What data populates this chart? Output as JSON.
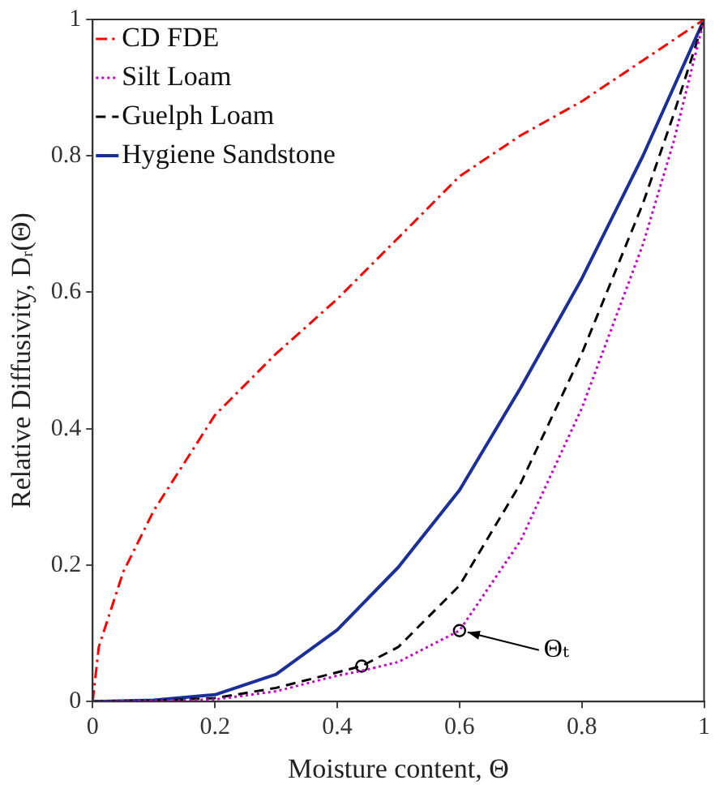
{
  "chart_data": {
    "type": "line",
    "xlabel": "Moisture content, Θ",
    "ylabel": "Relative Diffusivity, Dᵣ(Θ)",
    "xlim": [
      0,
      1
    ],
    "ylim": [
      0,
      1
    ],
    "xticks": [
      0,
      0.2,
      0.4,
      0.6,
      0.8,
      1
    ],
    "yticks": [
      0,
      0.2,
      0.4,
      0.6,
      0.8,
      1
    ],
    "grid": false,
    "legend": "top left",
    "series": [
      {
        "name": "CD FDE",
        "color": "#ff0000",
        "line_style": "dashdot",
        "x": [
          0,
          0.01,
          0.05,
          0.1,
          0.2,
          0.3,
          0.4,
          0.5,
          0.6,
          0.7,
          0.8,
          0.9,
          1
        ],
        "values": [
          0,
          0.08,
          0.19,
          0.28,
          0.42,
          0.51,
          0.59,
          0.68,
          0.77,
          0.83,
          0.88,
          0.94,
          1
        ]
      },
      {
        "name": "Silt Loam",
        "color": "#cc00cc",
        "line_style": "dotted",
        "x": [
          0,
          0.1,
          0.2,
          0.3,
          0.4,
          0.44,
          0.5,
          0.6,
          0.7,
          0.8,
          0.9,
          0.95,
          1
        ],
        "values": [
          0,
          0.001,
          0.003,
          0.015,
          0.038,
          0.045,
          0.058,
          0.104,
          0.236,
          0.43,
          0.67,
          0.82,
          1
        ]
      },
      {
        "name": "Guelph Loam",
        "color": "#000000",
        "line_style": "dashed",
        "x": [
          0,
          0.1,
          0.2,
          0.3,
          0.44,
          0.5,
          0.6,
          0.7,
          0.8,
          0.9,
          0.95,
          1
        ],
        "values": [
          0,
          0.001,
          0.005,
          0.02,
          0.052,
          0.08,
          0.17,
          0.32,
          0.51,
          0.73,
          0.86,
          1
        ]
      },
      {
        "name": "Hygiene Sandstone",
        "color": "#1a2f9a",
        "line_style": "solid",
        "x": [
          0,
          0.1,
          0.2,
          0.3,
          0.4,
          0.5,
          0.6,
          0.7,
          0.8,
          0.9,
          1
        ],
        "values": [
          0,
          0.002,
          0.01,
          0.04,
          0.105,
          0.197,
          0.31,
          0.46,
          0.62,
          0.8,
          1
        ]
      },
      {
        "type": "scatter",
        "color": "#000000",
        "marker": "circle",
        "x": [
          0.44,
          0.6
        ],
        "values": [
          0.052,
          0.104
        ]
      }
    ],
    "annotations": [
      {
        "text": "Θₜ",
        "x": 0.6,
        "y": 0.104
      }
    ]
  }
}
